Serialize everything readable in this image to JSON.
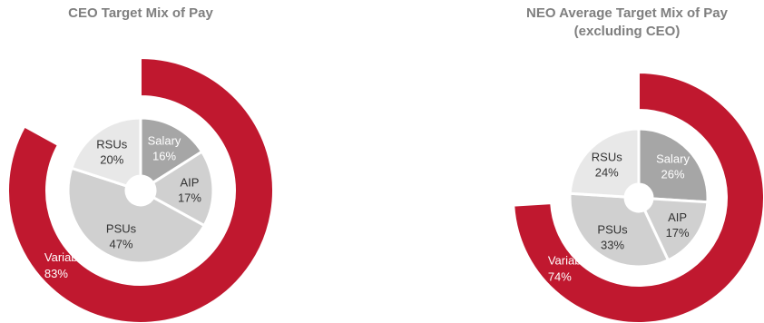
{
  "chart_data": [
    {
      "type": "pie",
      "title": "CEO Target Mix of Pay",
      "subtitle": "",
      "outer_ring": {
        "label": "Variable",
        "value": 83,
        "value_text": "83%"
      },
      "slices": [
        {
          "label": "Salary",
          "value": 16,
          "value_text": "16%",
          "color": "#a6a6a6",
          "text_color": "#ffffff"
        },
        {
          "label": "AIP",
          "value": 17,
          "value_text": "17%",
          "color": "#d0d0d0",
          "text_color": "#333333"
        },
        {
          "label": "PSUs",
          "value": 47,
          "value_text": "47%",
          "color": "#d0d0d0",
          "text_color": "#333333"
        },
        {
          "label": "RSUs",
          "value": 20,
          "value_text": "20%",
          "color": "#e8e8e8",
          "text_color": "#333333"
        }
      ]
    },
    {
      "type": "pie",
      "title": "NEO Average Target Mix of Pay",
      "subtitle": "(excluding CEO)",
      "outer_ring": {
        "label": "Variable",
        "value": 74,
        "value_text": "74%"
      },
      "slices": [
        {
          "label": "Salary",
          "value": 26,
          "value_text": "26%",
          "color": "#a6a6a6",
          "text_color": "#ffffff"
        },
        {
          "label": "AIP",
          "value": 17,
          "value_text": "17%",
          "color": "#d0d0d0",
          "text_color": "#333333"
        },
        {
          "label": "PSUs",
          "value": 33,
          "value_text": "33%",
          "color": "#d0d0d0",
          "text_color": "#333333"
        },
        {
          "label": "RSUs",
          "value": 24,
          "value_text": "24%",
          "color": "#e8e8e8",
          "text_color": "#333333"
        }
      ]
    }
  ],
  "colors": {
    "variable_ring": "#c0182f",
    "title": "#7f7f7f"
  }
}
